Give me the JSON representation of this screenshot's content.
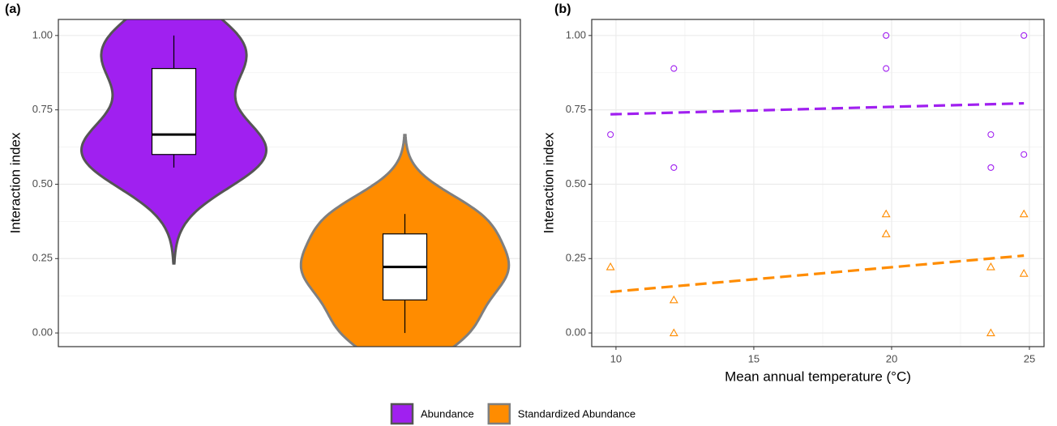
{
  "chart_data": [
    {
      "type": "violin",
      "panel_label": "(a)",
      "y_label": "Interaction index",
      "ylim": [
        -0.046,
        1.054
      ],
      "yticks": [
        {
          "value": 0,
          "label": "0.00"
        },
        {
          "value": 0.25,
          "label": "0.25"
        },
        {
          "value": 0.5,
          "label": "0.50"
        },
        {
          "value": 0.75,
          "label": "0.75"
        },
        {
          "value": 1,
          "label": "1.00"
        }
      ],
      "grid": true,
      "series": [
        {
          "name": "Abundance",
          "color": "#a020f0",
          "values": [
            0.667,
            0.889,
            0.556,
            1.0,
            0.889,
            0.667,
            0.556,
            1.0,
            0.6
          ],
          "box": {
            "min": 0.556,
            "q1": 0.6,
            "median": 0.667,
            "q3": 0.889,
            "max": 1.0
          }
        },
        {
          "name": "Standardized Abundance",
          "color": "#ff8c00",
          "values": [
            0.222,
            0.111,
            0.0,
            0.4,
            0.333,
            0.222,
            0.0,
            0.4,
            0.2
          ],
          "box": {
            "min": 0.0,
            "q1": 0.111,
            "median": 0.222,
            "q3": 0.333,
            "max": 0.4
          }
        }
      ]
    },
    {
      "type": "scatter",
      "panel_label": "(b)",
      "x_label": "Mean annual temperature (°C)",
      "y_label": "Interaction index",
      "xlim": [
        9.12,
        25.53
      ],
      "xticks": [
        10,
        15,
        20,
        25
      ],
      "ylim": [
        -0.046,
        1.054
      ],
      "yticks": [
        {
          "value": 0,
          "label": "0.00"
        },
        {
          "value": 0.25,
          "label": "0.25"
        },
        {
          "value": 0.5,
          "label": "0.50"
        },
        {
          "value": 0.75,
          "label": "0.75"
        },
        {
          "value": 1,
          "label": "1.00"
        }
      ],
      "grid": true,
      "series": [
        {
          "color": "#a020f0",
          "marker": "circle",
          "x": [
            9.8,
            12.1,
            12.1,
            19.8,
            19.8,
            23.6,
            23.6,
            24.8,
            24.8
          ],
          "values": [
            0.667,
            0.889,
            0.556,
            1.0,
            0.889,
            0.667,
            0.556,
            1.0,
            0.6
          ],
          "fit": {
            "x": [
              9.8,
              24.8
            ],
            "values": [
              0.735,
              0.772
            ]
          }
        },
        {
          "color": "#ff8c00",
          "marker": "triangle",
          "x": [
            9.8,
            12.1,
            12.1,
            19.8,
            19.8,
            23.6,
            23.6,
            24.8,
            24.8
          ],
          "values": [
            0.222,
            0.111,
            0.0,
            0.4,
            0.333,
            0.222,
            0.0,
            0.4,
            0.2
          ],
          "fit": {
            "x": [
              9.8,
              24.8
            ],
            "values": [
              0.138,
              0.26
            ]
          }
        }
      ]
    }
  ]
}
